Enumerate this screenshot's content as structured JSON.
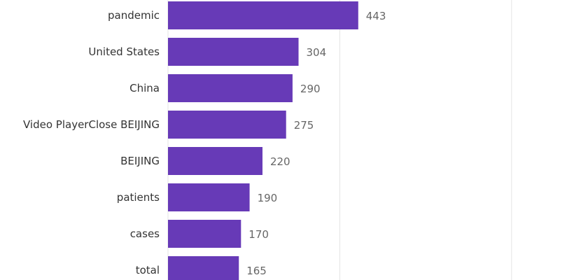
{
  "chart_data": {
    "type": "bar",
    "orientation": "horizontal",
    "categories": [
      "pandemic",
      "United States",
      "China",
      "Video PlayerClose BEIJING",
      "BEIJING",
      "patients",
      "cases",
      "total"
    ],
    "values": [
      443,
      304,
      290,
      275,
      220,
      190,
      170,
      165
    ],
    "title": "",
    "xlabel": "",
    "ylabel": "",
    "xlim": [
      0,
      1000
    ],
    "grid": true,
    "legend": "none",
    "data_labels": true,
    "bar_color": "#673ab7",
    "gridline_color": "#e4e4e4",
    "text_color": "#333333",
    "value_label_color": "#666666"
  }
}
